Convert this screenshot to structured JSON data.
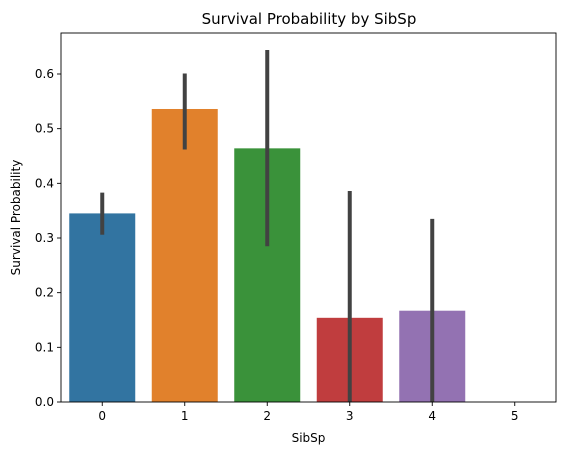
{
  "chart_data": {
    "type": "bar",
    "title": "Survival Probability by SibSp",
    "xlabel": "SibSp",
    "ylabel": "Survival Probability",
    "categories": [
      "0",
      "1",
      "2",
      "3",
      "4",
      "5"
    ],
    "values": [
      0.345,
      0.536,
      0.464,
      0.154,
      0.167,
      0.0
    ],
    "error_bars": [
      [
        0.306,
        0.383
      ],
      [
        0.462,
        0.601
      ],
      [
        0.285,
        0.644
      ],
      [
        0.0,
        0.386
      ],
      [
        0.0,
        0.335
      ],
      null
    ],
    "colors": [
      "#3274a1",
      "#e1812c",
      "#3a923a",
      "#c03d3e",
      "#9372b2",
      "#845b53"
    ],
    "yticks": [
      0.0,
      0.1,
      0.2,
      0.3,
      0.4,
      0.5,
      0.6
    ],
    "ytick_labels": [
      "0.0",
      "0.1",
      "0.2",
      "0.3",
      "0.4",
      "0.5",
      "0.6"
    ],
    "ylim": [
      0,
      0.675
    ],
    "grid": false,
    "legend": "none"
  }
}
